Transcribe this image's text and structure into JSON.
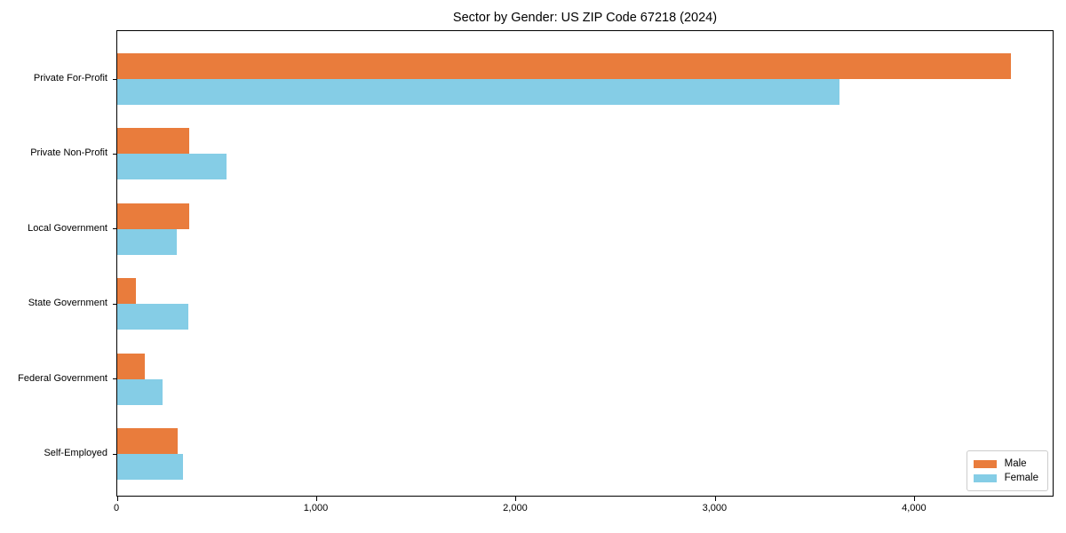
{
  "title": "Sector by Gender: US ZIP Code 67218 (2024)",
  "chart_data": {
    "type": "bar",
    "orientation": "horizontal",
    "title": "Sector by Gender: US ZIP Code 67218 (2024)",
    "categories": [
      "Private For-Profit",
      "Private Non-Profit",
      "Local Government",
      "State Government",
      "Federal Government",
      "Self-Employed"
    ],
    "series": [
      {
        "name": "Male",
        "color": "#E97C3C",
        "values": [
          4480,
          360,
          360,
          95,
          140,
          305
        ]
      },
      {
        "name": "Female",
        "color": "#85CDE6",
        "values": [
          3620,
          550,
          300,
          355,
          225,
          330
        ]
      }
    ],
    "xlabel": "",
    "ylabel": "",
    "xlim": [
      0,
      4700
    ],
    "xticks": [
      {
        "value": 0,
        "label": "0"
      },
      {
        "value": 1000,
        "label": "1,000"
      },
      {
        "value": 2000,
        "label": "2,000"
      },
      {
        "value": 3000,
        "label": "3,000"
      },
      {
        "value": 4000,
        "label": "4,000"
      }
    ],
    "grid": false,
    "legend_position": "lower right",
    "axis_color": "#000000",
    "background_color": "#ffffff",
    "legend_border_color": "#cccccc"
  }
}
